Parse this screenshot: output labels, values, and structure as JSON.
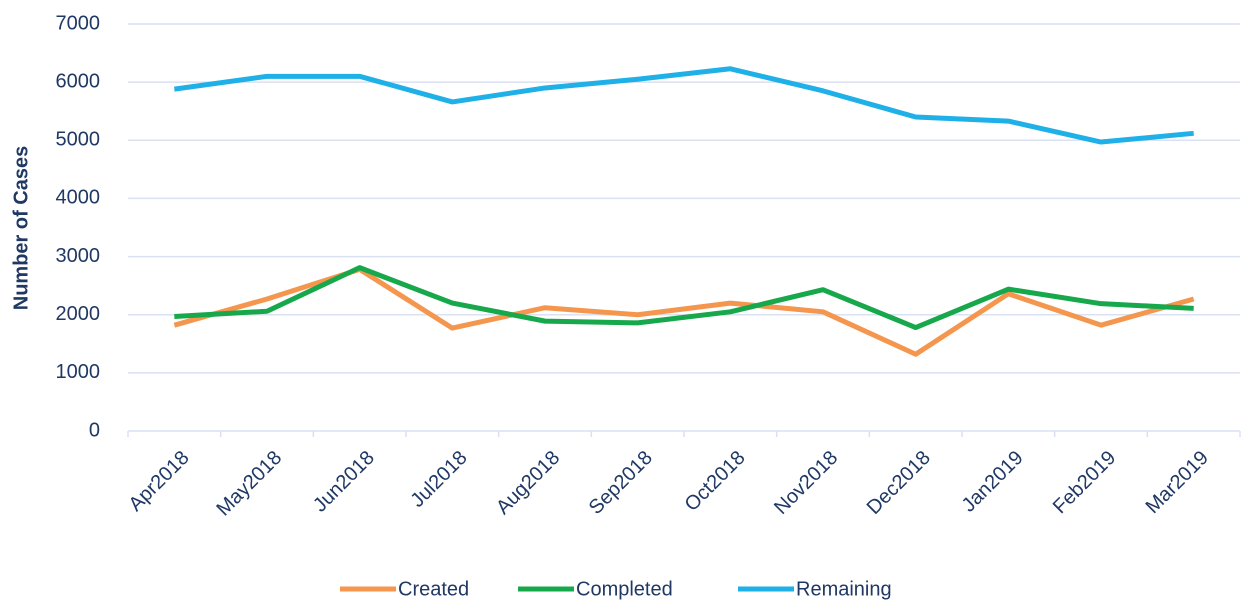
{
  "chart_data": {
    "type": "line",
    "y_label": "Number of Cases",
    "categories": [
      "Apr2018",
      "May2018",
      "Jun2018",
      "Jul2018",
      "Aug2018",
      "Sep2018",
      "Oct2018",
      "Nov2018",
      "Dec2018",
      "Jan2019",
      "Feb2019",
      "Mar2019"
    ],
    "series": [
      {
        "name": "Created",
        "color": "#f5964f",
        "values": [
          1820,
          2270,
          2780,
          1770,
          2120,
          2000,
          2200,
          2050,
          1320,
          2360,
          1820,
          2270
        ]
      },
      {
        "name": "Completed",
        "color": "#17a84b",
        "values": [
          1970,
          2060,
          2810,
          2200,
          1890,
          1860,
          2050,
          2430,
          1780,
          2440,
          2190,
          2110
        ]
      },
      {
        "name": "Remaining",
        "color": "#1fb0e8",
        "values": [
          5880,
          6100,
          6100,
          5660,
          5900,
          6050,
          6230,
          5850,
          5400,
          5330,
          4970,
          5120
        ]
      }
    ],
    "ylim": [
      0,
      7000
    ],
    "yticks": [
      0,
      1000,
      2000,
      3000,
      4000,
      5000,
      6000,
      7000
    ],
    "grid": true,
    "legend": "bottom"
  }
}
